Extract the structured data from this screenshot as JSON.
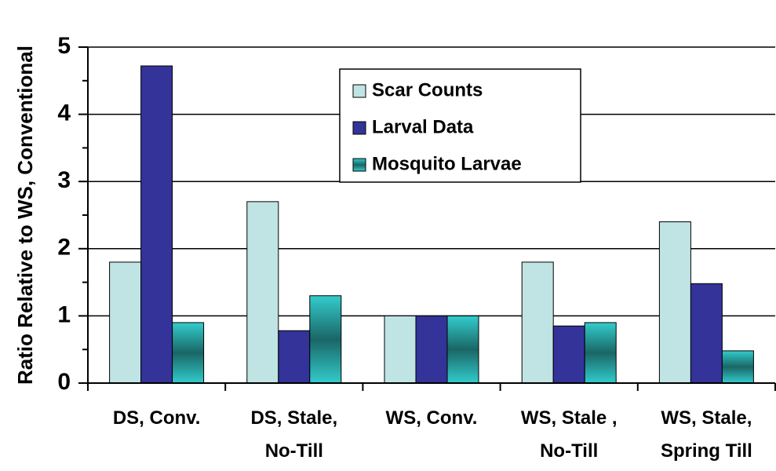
{
  "chart_data": {
    "type": "bar",
    "y_label": "Ratio Relative to WS, Conventional",
    "categories": [
      "DS, Conv.",
      "DS, Stale,\nNo-Till",
      "WS, Conv.",
      "WS, Stale ,\nNo-Till",
      "WS, Stale,\nSpring Till"
    ],
    "series": [
      {
        "name": "Scar Counts",
        "color": "#c0e4e4",
        "values": [
          1.8,
          2.7,
          1.0,
          1.8,
          2.4
        ]
      },
      {
        "name": "Larval Data",
        "color": "#333399",
        "values": [
          4.72,
          0.78,
          1.0,
          0.85,
          1.48
        ]
      },
      {
        "name": "Mosquito Larvae",
        "color": "#33cccc",
        "values": [
          0.9,
          1.3,
          1.0,
          0.9,
          0.48
        ]
      }
    ],
    "ylim": [
      0,
      5
    ],
    "yticks": [
      0,
      1,
      2,
      3,
      4,
      5
    ],
    "minor_yticks": [
      0.5,
      1.5,
      2.5,
      3.5,
      4.5
    ],
    "grid": true,
    "legend": "top-center"
  }
}
